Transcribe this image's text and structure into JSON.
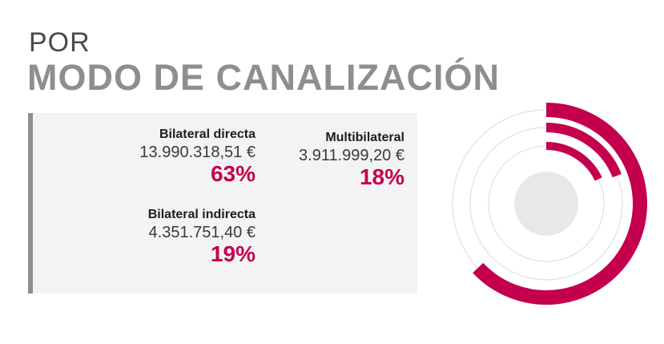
{
  "header": {
    "line1": "POR",
    "line2": "MODO DE CANALIZACIÓN"
  },
  "entries": [
    {
      "name": "Bilateral directa",
      "amount": "13.990.318,51 €",
      "pct": "63%"
    },
    {
      "name": "Multibilateral",
      "amount": "3.911.999,20 €",
      "pct": "18%"
    },
    {
      "name": "Bilateral indirecta",
      "amount": "4.351.751,40 €",
      "pct": "19%"
    }
  ],
  "colors": {
    "accent": "#c4004e",
    "track": "#e0e0e0",
    "center": "#e8e8e9",
    "panel": "#f3f3f4",
    "panel_border": "#8f8f8f"
  },
  "chart_data": {
    "type": "radial-bar",
    "categories": [
      "Bilateral directa",
      "Bilateral indirecta",
      "Multibilateral"
    ],
    "values": [
      63,
      19,
      18
    ],
    "unit": "%",
    "legend": "left"
  }
}
